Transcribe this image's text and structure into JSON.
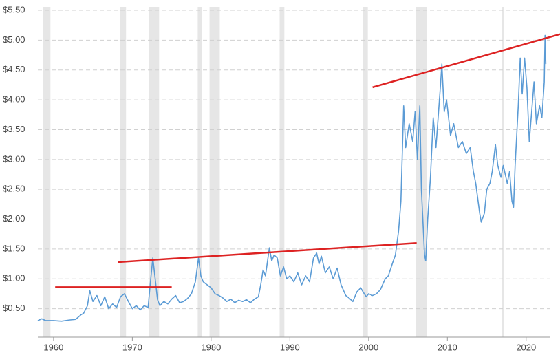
{
  "chart_data": {
    "type": "line",
    "xlim": [
      1958,
      2024.3
    ],
    "ylim": [
      0,
      5.5
    ],
    "xticks": [
      1960,
      1970,
      1980,
      1990,
      2000,
      2010,
      2020
    ],
    "yticks": [
      {
        "value": 0.5,
        "label": "$0.50"
      },
      {
        "value": 1,
        "label": "$1.00"
      },
      {
        "value": 1.5,
        "label": "$1.50"
      },
      {
        "value": 2,
        "label": "$2.00"
      },
      {
        "value": 2.5,
        "label": "$2.50"
      },
      {
        "value": 3,
        "label": "$3.00"
      },
      {
        "value": 3.5,
        "label": "$3.50"
      },
      {
        "value": 4,
        "label": "$4.00"
      },
      {
        "value": 4.5,
        "label": "$4.50"
      },
      {
        "value": 5,
        "label": "$5.00"
      },
      {
        "value": 5.5,
        "label": "$5.50"
      }
    ],
    "grid": true,
    "recession_color": "#e6e6e6",
    "recessions": [
      [
        1958.7,
        1959.6
      ],
      [
        1968.4,
        1969.2
      ],
      [
        1972.1,
        1973.4
      ],
      [
        1978.3,
        1978.8
      ],
      [
        1979.8,
        1981.1
      ],
      [
        1988.7,
        1989.3
      ],
      [
        1999.3,
        1999.9
      ],
      [
        2006.0,
        2007.4
      ],
      [
        2016.9,
        2017.2
      ]
    ],
    "series": [
      {
        "color": "#5b9bd5",
        "x": [
          1958.0,
          1958.5,
          1959.0,
          1960.0,
          1961.0,
          1962.0,
          1962.8,
          1963.5,
          1963.8,
          1964.3,
          1964.6,
          1965.0,
          1965.5,
          1966.0,
          1966.5,
          1967.0,
          1967.5,
          1968.0,
          1968.5,
          1969.0,
          1969.5,
          1970.0,
          1970.5,
          1971.0,
          1971.5,
          1972.0,
          1972.3,
          1972.6,
          1972.9,
          1973.2,
          1973.5,
          1974.0,
          1974.5,
          1975.0,
          1975.5,
          1976.0,
          1976.5,
          1977.0,
          1977.5,
          1978.0,
          1978.4,
          1978.7,
          1979.0,
          1979.5,
          1980.0,
          1980.5,
          1981.0,
          1981.5,
          1982.0,
          1982.5,
          1983.0,
          1983.5,
          1984.0,
          1984.5,
          1985.0,
          1985.5,
          1986.0,
          1986.3,
          1986.6,
          1986.9,
          1987.4,
          1987.7,
          1988.0,
          1988.4,
          1988.8,
          1989.2,
          1989.6,
          1990.0,
          1990.5,
          1991.0,
          1991.5,
          1992.0,
          1992.5,
          1993.0,
          1993.4,
          1993.7,
          1994.0,
          1994.5,
          1995.0,
          1995.5,
          1996.0,
          1996.5,
          1997.1,
          1997.5,
          1998.0,
          1998.5,
          1999.0,
          1999.3,
          1999.7,
          2000.0,
          2000.5,
          2001.0,
          2001.5,
          2002.1,
          2002.5,
          2003.0,
          2003.4,
          2003.8,
          2004.1,
          2004.45,
          2004.7,
          2005.15,
          2005.6,
          2005.9,
          2006.2,
          2006.5,
          2006.7,
          2007.1,
          2007.25,
          2007.5,
          2007.85,
          2008.2,
          2008.55,
          2009.1,
          2009.3,
          2009.6,
          2009.9,
          2010.4,
          2010.8,
          2011.4,
          2011.9,
          2012.4,
          2012.9,
          2013.3,
          2013.6,
          2014.1,
          2014.3,
          2014.7,
          2015.0,
          2015.4,
          2015.7,
          2016.1,
          2016.4,
          2016.8,
          2017.1,
          2017.6,
          2017.9,
          2018.2,
          2018.4,
          2018.6,
          2019.0,
          2019.25,
          2019.5,
          2019.8,
          2020.1,
          2020.4,
          2020.7,
          2021.0,
          2021.3,
          2021.7,
          2022.0,
          2022.3,
          2022.4,
          2022.5
        ],
        "values": [
          0.3,
          0.33,
          0.3,
          0.3,
          0.29,
          0.31,
          0.32,
          0.4,
          0.42,
          0.55,
          0.8,
          0.62,
          0.72,
          0.55,
          0.7,
          0.5,
          0.58,
          0.52,
          0.7,
          0.75,
          0.62,
          0.5,
          0.55,
          0.48,
          0.55,
          0.52,
          0.95,
          1.35,
          1.0,
          0.65,
          0.55,
          0.62,
          0.58,
          0.66,
          0.72,
          0.6,
          0.62,
          0.67,
          0.75,
          0.95,
          1.35,
          1.05,
          0.95,
          0.9,
          0.85,
          0.75,
          0.72,
          0.68,
          0.62,
          0.66,
          0.6,
          0.64,
          0.62,
          0.65,
          0.6,
          0.66,
          0.7,
          0.9,
          1.15,
          1.05,
          1.52,
          1.3,
          1.4,
          1.35,
          1.05,
          1.2,
          1.0,
          1.05,
          0.95,
          1.1,
          0.9,
          1.05,
          0.95,
          1.35,
          1.43,
          1.25,
          1.38,
          1.1,
          1.2,
          1.0,
          1.18,
          0.9,
          0.72,
          0.68,
          0.62,
          0.78,
          0.85,
          0.78,
          0.7,
          0.75,
          0.72,
          0.75,
          0.82,
          1.0,
          1.05,
          1.25,
          1.4,
          1.8,
          2.3,
          3.9,
          3.2,
          3.6,
          3.3,
          3.8,
          3.0,
          3.9,
          2.5,
          1.4,
          1.3,
          2.0,
          2.7,
          3.7,
          3.2,
          4.2,
          4.6,
          3.8,
          4.0,
          3.4,
          3.6,
          3.2,
          3.3,
          3.1,
          3.2,
          2.8,
          2.6,
          2.1,
          1.95,
          2.1,
          2.5,
          2.6,
          2.8,
          3.25,
          2.9,
          2.7,
          2.9,
          2.6,
          2.8,
          2.3,
          2.2,
          2.9,
          3.9,
          4.7,
          4.1,
          4.7,
          4.2,
          3.3,
          3.8,
          4.3,
          3.6,
          3.9,
          3.7,
          4.3,
          5.08,
          4.6
        ]
      }
    ],
    "trend_color": "#dd2222",
    "trend_lines": [
      {
        "x": [
          1960.2,
          1975.0
        ],
        "values": [
          0.86,
          0.86
        ]
      },
      {
        "x": [
          1968.2,
          2006.1
        ],
        "values": [
          1.28,
          1.6
        ]
      },
      {
        "x": [
          2000.5,
          2024.3
        ],
        "values": [
          4.21,
          5.1
        ]
      }
    ]
  }
}
